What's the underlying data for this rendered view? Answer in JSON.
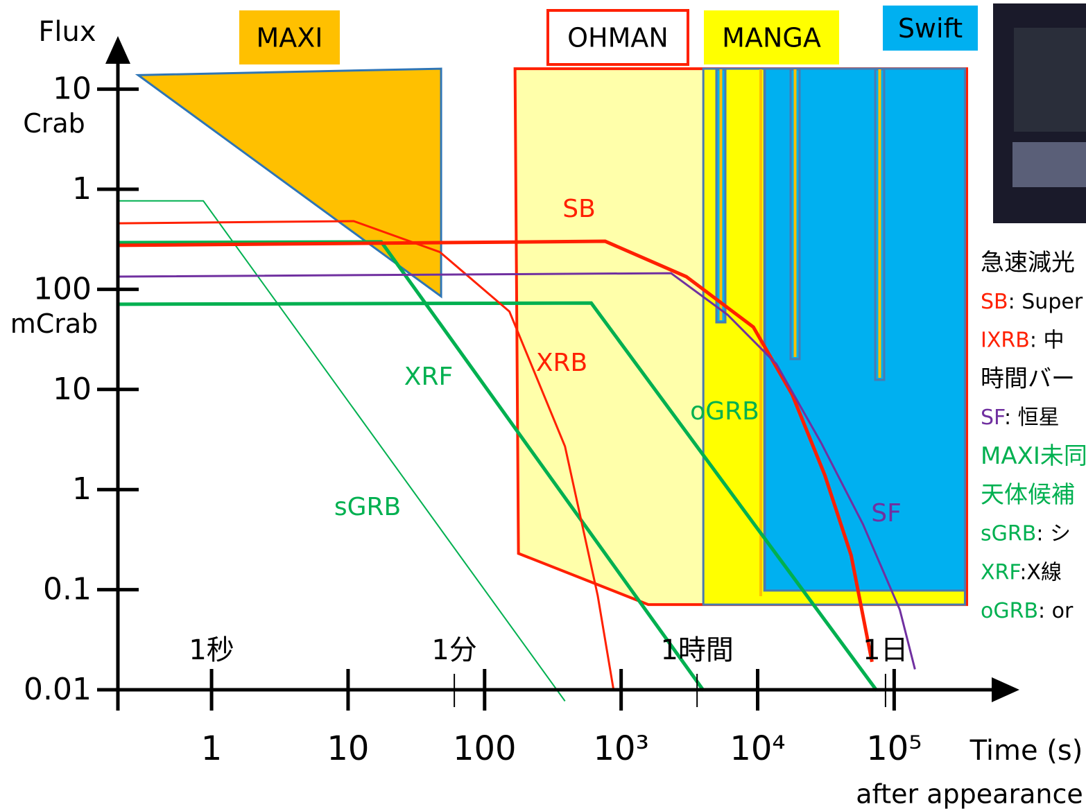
{
  "chart_data": {
    "type": "line",
    "x_label": "Time (s)",
    "x_sublabel": "after appearance",
    "y_label": "Flux",
    "x_log": true,
    "y_log": true,
    "xlim": [
      0.206,
      780000
    ],
    "ylim": [
      0.01,
      35000
    ],
    "xticks": [
      1,
      10,
      100,
      {
        "value": 1000,
        "label": "10³"
      },
      {
        "value": 10000,
        "label": "10⁴"
      },
      {
        "value": 100000,
        "label": "10⁵"
      }
    ],
    "yticks": [
      {
        "value": 10000,
        "label": "10"
      },
      {
        "value": 1000,
        "label": "1"
      },
      100,
      10,
      1,
      0.1,
      0.01
    ],
    "y_unit_labels": [
      {
        "value": 10000,
        "label": "Crab"
      },
      {
        "value": 100,
        "label": "mCrab"
      }
    ],
    "time_marks": [
      {
        "value": 1,
        "label": "1秒"
      },
      {
        "value": 60,
        "label": "1分"
      },
      {
        "value": 3600,
        "label": "1時間"
      },
      {
        "value": 86400,
        "label": "1日"
      }
    ],
    "regions": [
      {
        "name": "OHMAN",
        "fill": "#ffffaa",
        "stroke": "#ff2000",
        "label_fill": "#ffffff",
        "x": [
          167,
          177,
          1580,
          340000,
          340000
        ],
        "values": [
          16000,
          0.23,
          0.071,
          0.071,
          16000
        ]
      },
      {
        "name": "MANGA",
        "fill": "#ffff00",
        "stroke": "#4a7ab0",
        "label_fill": "#ffff00",
        "x": [
          4000,
          4000,
          330000,
          330000
        ],
        "values": [
          16000,
          0.071,
          0.071,
          16000
        ]
      },
      {
        "name": "Swift",
        "fill": "#00b0f0",
        "stroke": "#4a7ab0",
        "label_fill": "#00b0f0",
        "x": [
          11200,
          11200,
          330000,
          330000
        ],
        "values": [
          16000,
          0.098,
          0.098,
          16000
        ]
      },
      {
        "name": "MAXI",
        "fill": "#ffc000",
        "stroke": "#2e75b6",
        "label_fill": "#ffc000",
        "x": [
          0.29,
          48,
          48
        ],
        "values": [
          13800,
          16000,
          85
        ]
      }
    ],
    "series": [
      {
        "name": "sGRB",
        "color": "#00b050",
        "width": 2,
        "x": [
          0.21,
          0.87,
          388
        ],
        "values": [
          765,
          765,
          0.0077
        ]
      },
      {
        "name": "XRF",
        "color": "#00b050",
        "width": 5,
        "x": [
          0.21,
          17.5,
          4018
        ],
        "values": [
          293,
          298,
          0.0098
        ]
      },
      {
        "name": "oGRB",
        "color": "#00b050",
        "width": 5,
        "x": [
          0.21,
          604,
          74600
        ],
        "values": [
          71,
          73,
          0.0098
        ]
      },
      {
        "name": "XRB",
        "color": "#ff2000",
        "width": 3,
        "x": [
          0.21,
          11,
          47,
          152,
          388,
          674,
          880
        ],
        "values": [
          457,
          480,
          236,
          60,
          2.7,
          0.087,
          0.01
        ]
      },
      {
        "name": "SB",
        "color": "#ff2000",
        "width": 5,
        "x": [
          0.21,
          764,
          3000,
          9300,
          17900,
          31000,
          48400,
          68800
        ],
        "values": [
          275,
          302,
          134,
          42,
          8.9,
          1.4,
          0.22,
          0.019
        ]
      },
      {
        "name": "SF",
        "color": "#7030a0",
        "width": 3,
        "x": [
          0.21,
          2320,
          6000,
          13700,
          29300,
          59100,
          110000,
          142000
        ],
        "values": [
          134,
          145,
          56,
          18,
          2.9,
          0.45,
          0.063,
          0.016
        ]
      }
    ],
    "notes": [
      {
        "text": "急速減光",
        "color": "#000000"
      },
      {
        "key": "SB",
        "text": ": Super",
        "color": "#ff2000"
      },
      {
        "key": "IXRB",
        "text": ":  中",
        "color": "#ff2000"
      },
      {
        "text": "時間バー",
        "color": "#000000"
      },
      {
        "key": "SF",
        "text": ": 恒星",
        "color": "#7030a0"
      },
      {
        "text": "MAXI未同",
        "color": "#00b050"
      },
      {
        "text": "天体候補",
        "color": "#00b050"
      },
      {
        "key": "sGRB",
        "text": ": シ",
        "color": "#00b050"
      },
      {
        "key": "XRF",
        "text": ":X線",
        "color": "#00b050"
      },
      {
        "key": "oGRB",
        "text": ": or",
        "color": "#00b050"
      }
    ]
  }
}
